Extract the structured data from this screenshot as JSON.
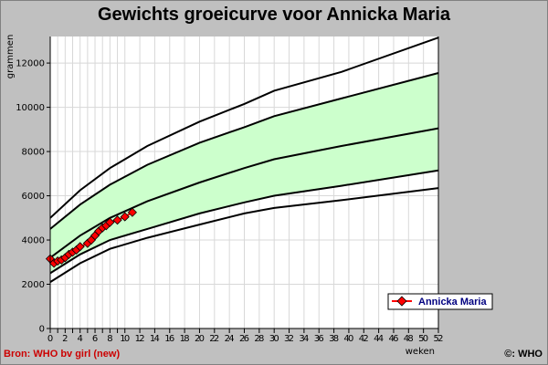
{
  "chart_data": {
    "type": "line",
    "title": "Gewichts groeicurve voor Annicka Maria",
    "xlabel": "weken",
    "ylabel": "grammen",
    "xlim": [
      0,
      52
    ],
    "ylim": [
      0,
      13200
    ],
    "x_ticks": [
      0,
      1,
      2,
      3,
      4,
      5,
      6,
      7,
      8,
      9,
      10,
      12,
      14,
      16,
      18,
      20,
      22,
      24,
      26,
      28,
      30,
      32,
      34,
      36,
      38,
      40,
      42,
      44,
      46,
      48,
      50,
      52
    ],
    "x_tick_labels": [
      "0",
      "2",
      "4",
      "6",
      "8",
      "10",
      "12",
      "14",
      "16",
      "18",
      "20",
      "22",
      "24",
      "26",
      "28",
      "30",
      "32",
      "34",
      "36",
      "38",
      "40",
      "42",
      "44",
      "46",
      "48",
      "50",
      "52"
    ],
    "y_ticks": [
      0,
      2000,
      4000,
      6000,
      8000,
      10000,
      12000
    ],
    "grid": true,
    "band_color": "#ccffcc",
    "band_between": [
      "p15",
      "p85"
    ],
    "reference_curves": [
      {
        "id": "p3",
        "x": [
          0,
          4,
          8,
          13,
          20,
          26,
          30,
          39,
          52
        ],
        "values": [
          2100,
          2950,
          3600,
          4100,
          4700,
          5200,
          5450,
          5800,
          6350
        ]
      },
      {
        "id": "p15",
        "x": [
          0,
          4,
          8,
          13,
          20,
          26,
          30,
          39,
          52
        ],
        "values": [
          2500,
          3350,
          4000,
          4500,
          5200,
          5700,
          6000,
          6450,
          7150
        ]
      },
      {
        "id": "p50",
        "x": [
          0,
          4,
          8,
          13,
          20,
          26,
          30,
          39,
          52
        ],
        "values": [
          3200,
          4200,
          5000,
          5750,
          6600,
          7250,
          7650,
          8250,
          9050
        ]
      },
      {
        "id": "p85",
        "x": [
          0,
          4,
          8,
          13,
          20,
          26,
          30,
          39,
          52
        ],
        "values": [
          4500,
          5600,
          6500,
          7400,
          8400,
          9100,
          9600,
          10400,
          11550
        ]
      },
      {
        "id": "p97",
        "x": [
          0,
          4,
          8,
          13,
          20,
          26,
          30,
          39,
          52
        ],
        "values": [
          5000,
          6250,
          7250,
          8250,
          9350,
          10150,
          10750,
          11600,
          13150
        ]
      }
    ],
    "series": [
      {
        "name": "Annicka Maria",
        "color": "#ff0000",
        "x": [
          0,
          0.5,
          1,
          1.5,
          2,
          2.5,
          3,
          3.5,
          4,
          5,
          5.5,
          6,
          6.5,
          7,
          7.5,
          8,
          9,
          10,
          11
        ],
        "values": [
          3150,
          2950,
          3050,
          3100,
          3200,
          3350,
          3450,
          3550,
          3700,
          3850,
          4000,
          4200,
          4400,
          4550,
          4650,
          4800,
          4900,
          5050,
          5250
        ]
      }
    ]
  },
  "source_text": "Bron: WHO bv girl (new)",
  "copyright_text": "©: WHO",
  "colors": {
    "background": "#c0c0c0",
    "plot_background": "#ffffff",
    "series": "#ff0000",
    "source_text": "#cc0000",
    "legend_text": "#000080"
  }
}
